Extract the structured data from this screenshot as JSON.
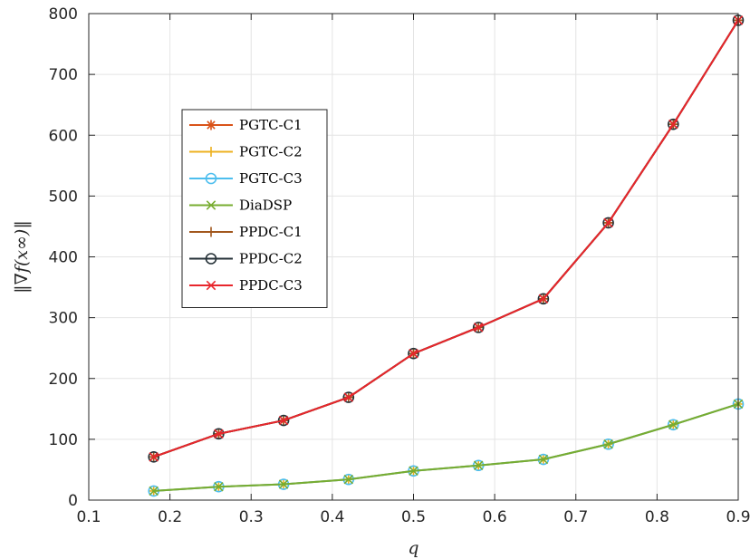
{
  "chart_data": {
    "type": "line",
    "xlabel": "q",
    "ylabel": "‖∇f(x∞)‖",
    "xlim": [
      0.1,
      0.9
    ],
    "ylim": [
      0,
      800
    ],
    "x_ticks": [
      0.1,
      0.2,
      0.3,
      0.4,
      0.5,
      0.6,
      0.7,
      0.8,
      0.9
    ],
    "x_tick_labels": [
      "0.1",
      "0.2",
      "0.3",
      "0.4",
      "0.5",
      "0.6",
      "0.7",
      "0.8",
      "0.9"
    ],
    "y_ticks": [
      0,
      100,
      200,
      300,
      400,
      500,
      600,
      700,
      800
    ],
    "y_tick_labels": [
      "0",
      "100",
      "200",
      "300",
      "400",
      "500",
      "600",
      "700",
      "800"
    ],
    "grid": true,
    "legend_position": "upper-left",
    "x": [
      0.18,
      0.26,
      0.34,
      0.42,
      0.5,
      0.58,
      0.66,
      0.74,
      0.82,
      0.9
    ],
    "series": [
      {
        "name": "PGTC-C1",
        "color": "#D95319",
        "marker": "asterisk",
        "values": [
          71,
          109,
          131,
          169,
          241,
          284,
          331,
          456,
          618,
          789
        ]
      },
      {
        "name": "PGTC-C2",
        "color": "#EDB120",
        "marker": "plus",
        "values": [
          15,
          22,
          26,
          34,
          48,
          57,
          67,
          92,
          124,
          158
        ]
      },
      {
        "name": "PGTC-C3",
        "color": "#4DBEEE",
        "marker": "circle",
        "values": [
          15,
          22,
          26,
          34,
          48,
          57,
          67,
          92,
          124,
          158
        ]
      },
      {
        "name": "DiaDSP",
        "color": "#77AC30",
        "marker": "x",
        "values": [
          15,
          22,
          26,
          34,
          48,
          57,
          67,
          92,
          124,
          158
        ]
      },
      {
        "name": "PPDC-C1",
        "color": "#A2571D",
        "marker": "plus",
        "values": [
          71,
          109,
          131,
          169,
          241,
          284,
          331,
          456,
          618,
          789
        ]
      },
      {
        "name": "PPDC-C2",
        "color": "#263238",
        "marker": "circle",
        "values": [
          71,
          109,
          131,
          169,
          241,
          284,
          331,
          456,
          618,
          789
        ]
      },
      {
        "name": "PPDC-C3",
        "color": "#E8262C",
        "marker": "x",
        "values": [
          71,
          109,
          131,
          169,
          241,
          284,
          331,
          456,
          618,
          789
        ]
      }
    ]
  }
}
